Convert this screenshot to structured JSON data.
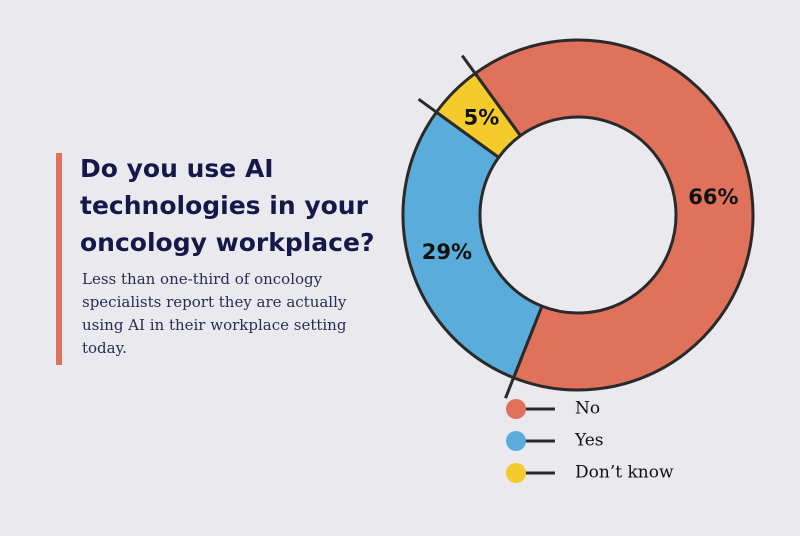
{
  "chart_data": {
    "type": "donut",
    "title": "Do you use AI technologies in your oncology workplace?",
    "subtitle": "Less than one-third of oncology specialists report they are actually using AI in their workplace setting today.",
    "categories": [
      "No",
      "Yes",
      "Don’t know"
    ],
    "values": [
      66,
      29,
      5
    ],
    "value_labels": [
      "66%",
      "29%",
      "5%"
    ],
    "colors": [
      "#e0715b",
      "#5aadda",
      "#f4cb2b"
    ]
  }
}
